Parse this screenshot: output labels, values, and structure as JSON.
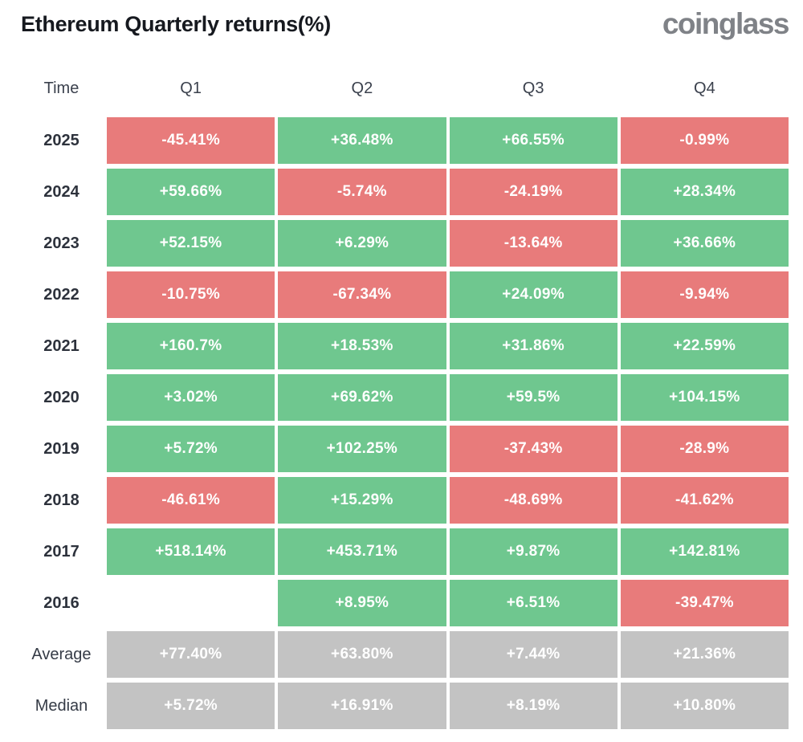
{
  "header": {
    "title": "Ethereum Quarterly returns(%)",
    "logo": "coinglass"
  },
  "colors": {
    "positive": "#6fc78f",
    "negative": "#e87b7b",
    "summary": "#c3c3c3"
  },
  "table": {
    "columns": [
      "Time",
      "Q1",
      "Q2",
      "Q3",
      "Q4"
    ],
    "rows": [
      {
        "label": "2025",
        "summary": false,
        "cells": [
          {
            "text": "-45.41%",
            "type": "negative"
          },
          {
            "text": "+36.48%",
            "type": "positive"
          },
          {
            "text": "+66.55%",
            "type": "positive"
          },
          {
            "text": "-0.99%",
            "type": "negative"
          }
        ]
      },
      {
        "label": "2024",
        "summary": false,
        "cells": [
          {
            "text": "+59.66%",
            "type": "positive"
          },
          {
            "text": "-5.74%",
            "type": "negative"
          },
          {
            "text": "-24.19%",
            "type": "negative"
          },
          {
            "text": "+28.34%",
            "type": "positive"
          }
        ]
      },
      {
        "label": "2023",
        "summary": false,
        "cells": [
          {
            "text": "+52.15%",
            "type": "positive"
          },
          {
            "text": "+6.29%",
            "type": "positive"
          },
          {
            "text": "-13.64%",
            "type": "negative"
          },
          {
            "text": "+36.66%",
            "type": "positive"
          }
        ]
      },
      {
        "label": "2022",
        "summary": false,
        "cells": [
          {
            "text": "-10.75%",
            "type": "negative"
          },
          {
            "text": "-67.34%",
            "type": "negative"
          },
          {
            "text": "+24.09%",
            "type": "positive"
          },
          {
            "text": "-9.94%",
            "type": "negative"
          }
        ]
      },
      {
        "label": "2021",
        "summary": false,
        "cells": [
          {
            "text": "+160.7%",
            "type": "positive"
          },
          {
            "text": "+18.53%",
            "type": "positive"
          },
          {
            "text": "+31.86%",
            "type": "positive"
          },
          {
            "text": "+22.59%",
            "type": "positive"
          }
        ]
      },
      {
        "label": "2020",
        "summary": false,
        "cells": [
          {
            "text": "+3.02%",
            "type": "positive"
          },
          {
            "text": "+69.62%",
            "type": "positive"
          },
          {
            "text": "+59.5%",
            "type": "positive"
          },
          {
            "text": "+104.15%",
            "type": "positive"
          }
        ]
      },
      {
        "label": "2019",
        "summary": false,
        "cells": [
          {
            "text": "+5.72%",
            "type": "positive"
          },
          {
            "text": "+102.25%",
            "type": "positive"
          },
          {
            "text": "-37.43%",
            "type": "negative"
          },
          {
            "text": "-28.9%",
            "type": "negative"
          }
        ]
      },
      {
        "label": "2018",
        "summary": false,
        "cells": [
          {
            "text": "-46.61%",
            "type": "negative"
          },
          {
            "text": "+15.29%",
            "type": "positive"
          },
          {
            "text": "-48.69%",
            "type": "negative"
          },
          {
            "text": "-41.62%",
            "type": "negative"
          }
        ]
      },
      {
        "label": "2017",
        "summary": false,
        "cells": [
          {
            "text": "+518.14%",
            "type": "positive"
          },
          {
            "text": "+453.71%",
            "type": "positive"
          },
          {
            "text": "+9.87%",
            "type": "positive"
          },
          {
            "text": "+142.81%",
            "type": "positive"
          }
        ]
      },
      {
        "label": "2016",
        "summary": false,
        "cells": [
          {
            "text": "",
            "type": "empty"
          },
          {
            "text": "+8.95%",
            "type": "positive"
          },
          {
            "text": "+6.51%",
            "type": "positive"
          },
          {
            "text": "-39.47%",
            "type": "negative"
          }
        ]
      },
      {
        "label": "Average",
        "summary": true,
        "cells": [
          {
            "text": "+77.40%",
            "type": "summary"
          },
          {
            "text": "+63.80%",
            "type": "summary"
          },
          {
            "text": "+7.44%",
            "type": "summary"
          },
          {
            "text": "+21.36%",
            "type": "summary"
          }
        ]
      },
      {
        "label": "Median",
        "summary": true,
        "cells": [
          {
            "text": "+5.72%",
            "type": "summary"
          },
          {
            "text": "+16.91%",
            "type": "summary"
          },
          {
            "text": "+8.19%",
            "type": "summary"
          },
          {
            "text": "+10.80%",
            "type": "summary"
          }
        ]
      }
    ]
  },
  "chart_data": {
    "type": "heatmap",
    "title": "Ethereum Quarterly returns(%)",
    "columns": [
      "Q1",
      "Q2",
      "Q3",
      "Q4"
    ],
    "rows": [
      "2025",
      "2024",
      "2023",
      "2022",
      "2021",
      "2020",
      "2019",
      "2018",
      "2017",
      "2016",
      "Average",
      "Median"
    ],
    "values_pct": [
      [
        -45.41,
        36.48,
        66.55,
        -0.99
      ],
      [
        59.66,
        -5.74,
        -24.19,
        28.34
      ],
      [
        52.15,
        6.29,
        -13.64,
        36.66
      ],
      [
        -10.75,
        -67.34,
        24.09,
        -9.94
      ],
      [
        160.7,
        18.53,
        31.86,
        22.59
      ],
      [
        3.02,
        69.62,
        59.5,
        104.15
      ],
      [
        5.72,
        102.25,
        -37.43,
        -28.9
      ],
      [
        -46.61,
        15.29,
        -48.69,
        -41.62
      ],
      [
        518.14,
        453.71,
        9.87,
        142.81
      ],
      [
        null,
        8.95,
        6.51,
        -39.47
      ],
      [
        77.4,
        63.8,
        7.44,
        21.36
      ],
      [
        5.72,
        16.91,
        8.19,
        10.8
      ]
    ],
    "legend": "green = positive return, red = negative return, gray = Average/Median summary rows, blank = no data"
  }
}
